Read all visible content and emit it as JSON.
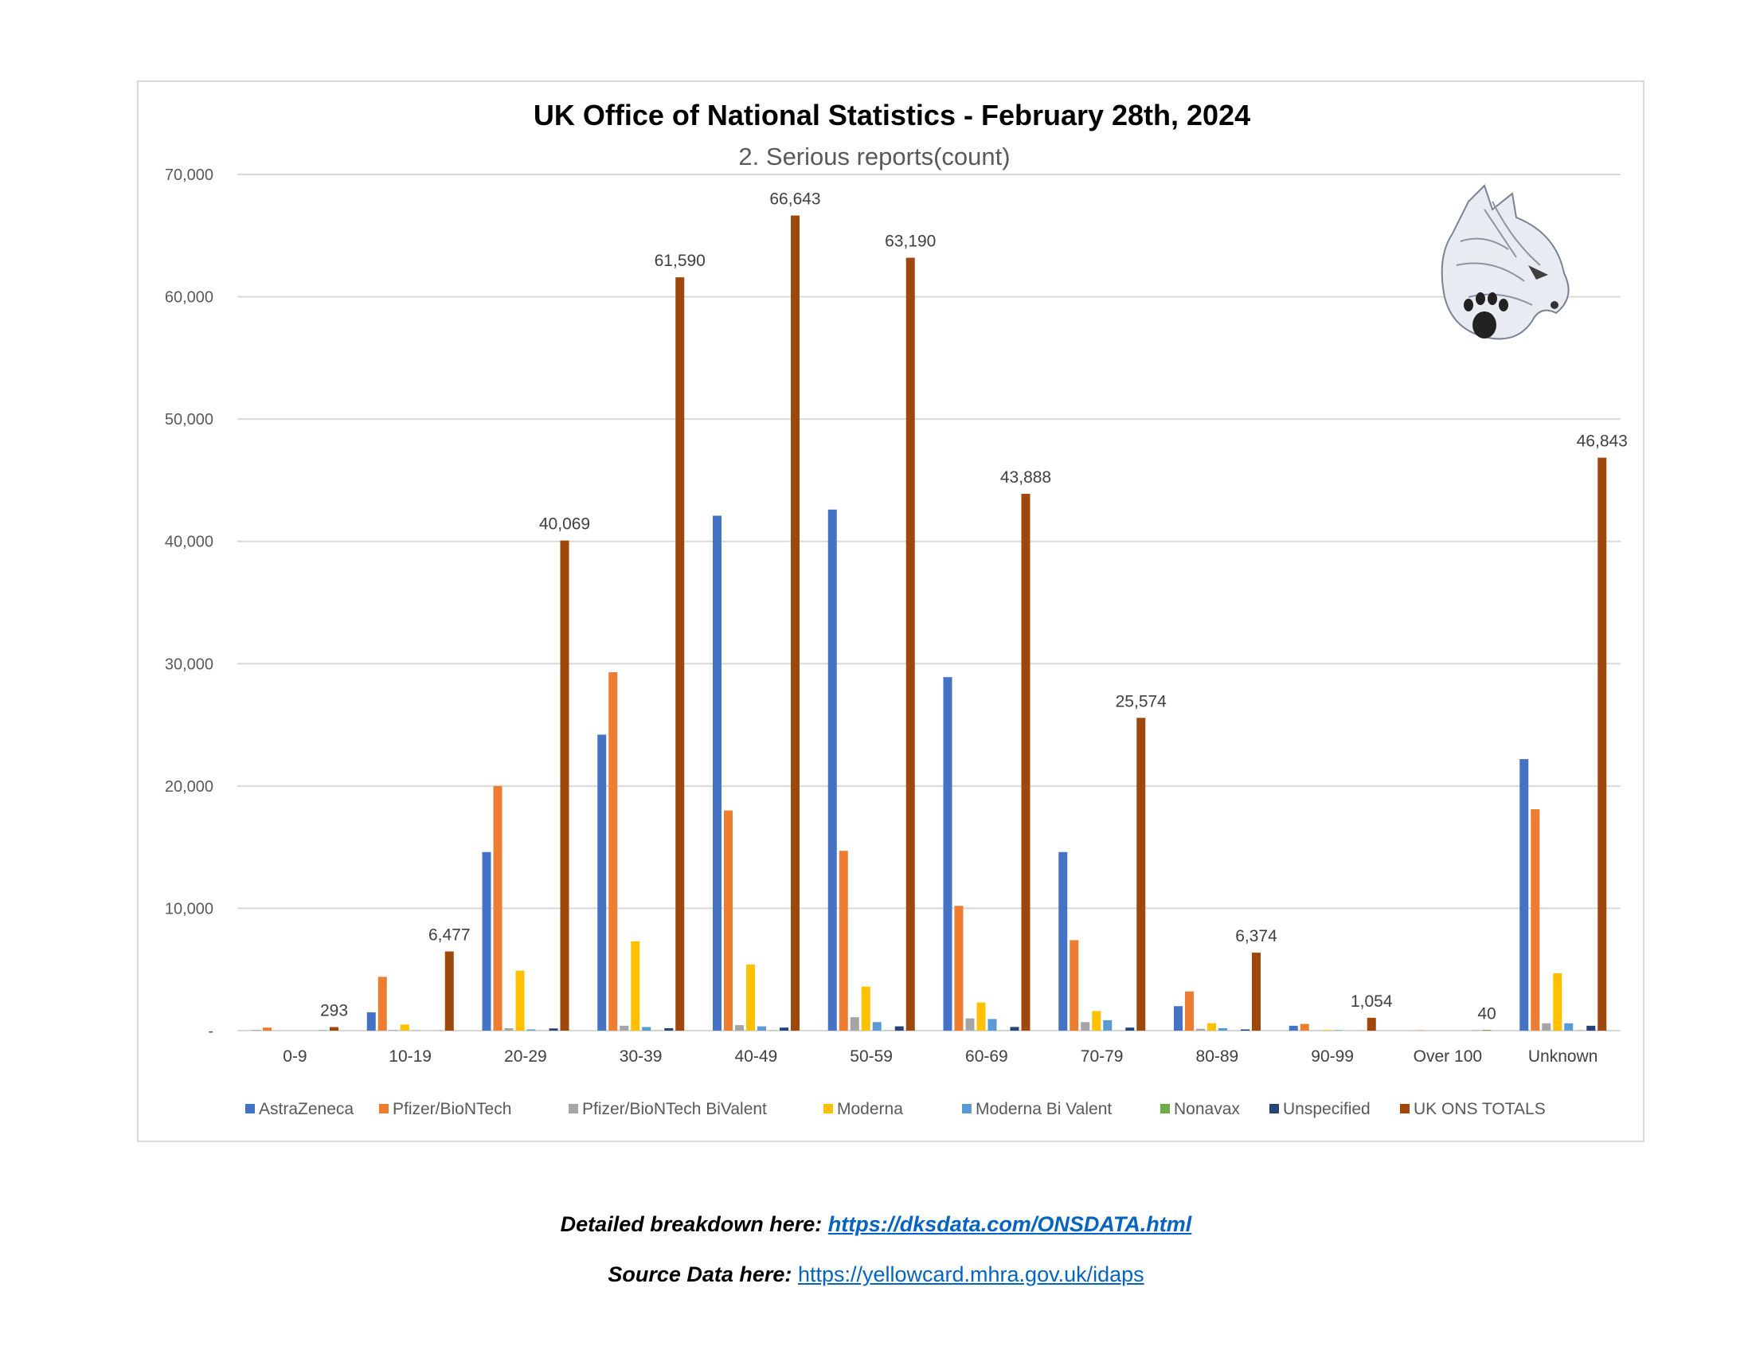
{
  "chart_data": {
    "type": "bar",
    "title": "UK Office of National Statistics - February 28th, 2024",
    "subtitle": "2. Serious reports(count)",
    "xlabel": "",
    "ylabel": "",
    "ylim": [
      0,
      70000
    ],
    "yticks": [
      {
        "value": 0,
        "label": "-"
      },
      {
        "value": 10000,
        "label": "10,000"
      },
      {
        "value": 20000,
        "label": "20,000"
      },
      {
        "value": 30000,
        "label": "30,000"
      },
      {
        "value": 40000,
        "label": "40,000"
      },
      {
        "value": 50000,
        "label": "50,000"
      },
      {
        "value": 60000,
        "label": "60,000"
      },
      {
        "value": 70000,
        "label": "70,000"
      }
    ],
    "grid": true,
    "legend_position": "bottom",
    "categories": [
      "0-9",
      "10-19",
      "20-29",
      "30-39",
      "40-49",
      "50-59",
      "60-69",
      "70-79",
      "80-89",
      "90-99",
      "Over 100",
      "Unknown"
    ],
    "series": [
      {
        "name": "AstraZeneca",
        "color": "#4472c4",
        "values": [
          30,
          1500,
          14600,
          24200,
          42100,
          42600,
          28900,
          14600,
          2000,
          400,
          5,
          22200
        ]
      },
      {
        "name": "Pfizer/BioNTech",
        "color": "#ed7d31",
        "values": [
          250,
          4400,
          20000,
          29300,
          18000,
          14700,
          10200,
          7400,
          3200,
          550,
          20,
          18100
        ]
      },
      {
        "name": "Pfizer/BioNTech BiValent",
        "color": "#a5a5a5",
        "values": [
          0,
          50,
          200,
          400,
          450,
          1100,
          1000,
          700,
          150,
          20,
          3,
          600
        ]
      },
      {
        "name": "Moderna",
        "color": "#ffc000",
        "values": [
          0,
          500,
          4900,
          7300,
          5400,
          3600,
          2300,
          1600,
          600,
          50,
          2,
          4700
        ]
      },
      {
        "name": "Moderna Bi Valent",
        "color": "#5b9bd5",
        "values": [
          0,
          20,
          100,
          300,
          350,
          700,
          950,
          850,
          200,
          30,
          1,
          600
        ]
      },
      {
        "name": "Nonavax",
        "color": "#70ad47",
        "values": [
          0,
          0,
          10,
          20,
          20,
          20,
          10,
          10,
          5,
          0,
          0,
          20
        ]
      },
      {
        "name": "Unspecified",
        "color": "#264478",
        "values": [
          13,
          7,
          180,
          200,
          250,
          350,
          300,
          250,
          100,
          4,
          9,
          400
        ]
      },
      {
        "name": "UK ONS TOTALS",
        "color": "#9e480e",
        "values": [
          293,
          6477,
          40069,
          61590,
          66643,
          63190,
          43888,
          25574,
          6374,
          1054,
          40,
          46843
        ]
      }
    ],
    "data_labels": [
      "293",
      "6,477",
      "40,069",
      "61,590",
      "66,643",
      "63,190",
      "43,888",
      "25,574",
      "6,374",
      "1,054",
      "40",
      "46,843"
    ]
  },
  "footer": {
    "detail_label": "Detailed breakdown here:",
    "detail_link": "https://dksdata.com/ONSDATA.html",
    "source_label": "Source Data here:",
    "source_link": "https://yellowcard.mhra.gov.uk/idaps"
  },
  "logo": {
    "icon": "wolf-head-paw-print-icon"
  }
}
